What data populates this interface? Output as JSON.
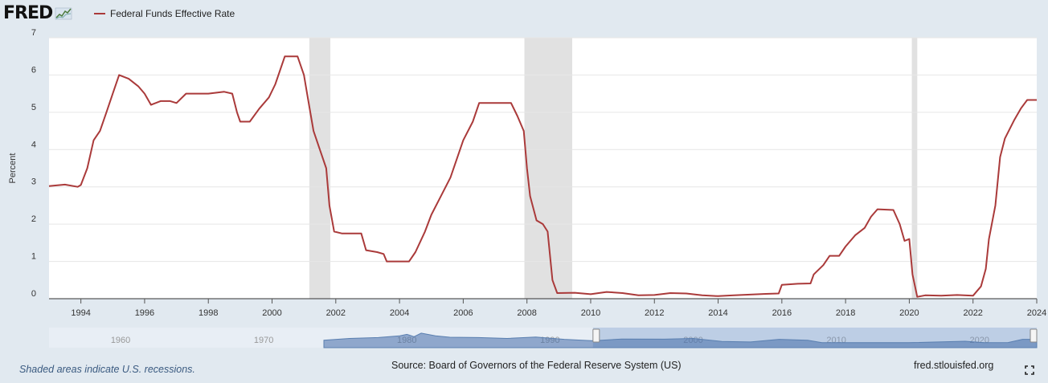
{
  "header": {
    "logo_text": "FRED",
    "logo_icon": "chart-line-icon",
    "series_name": "Federal Funds Effective Rate",
    "series_color": "#aa3a3a"
  },
  "footer": {
    "recession_note": "Shaded areas indicate U.S. recessions.",
    "source": "Source: Board of Governors of the Federal Reserve System (US)",
    "site": "fred.stlouisfed.org",
    "fullscreen_icon": "fullscreen-icon"
  },
  "chart_data": {
    "type": "line",
    "ylabel": "Percent",
    "xlim": [
      1993.0,
      2024.0
    ],
    "ylim": [
      0,
      7
    ],
    "yticks": [
      "0",
      "1",
      "2",
      "3",
      "4",
      "5",
      "6",
      "7"
    ],
    "xticks": [
      "1994",
      "1996",
      "1998",
      "2000",
      "2002",
      "2004",
      "2006",
      "2008",
      "2010",
      "2012",
      "2014",
      "2016",
      "2018",
      "2020",
      "2022",
      "2024"
    ],
    "grid": true,
    "recessions": [
      [
        2001.17,
        2001.83
      ],
      [
        2007.92,
        2009.42
      ],
      [
        2020.08,
        2020.25
      ]
    ],
    "series": [
      {
        "name": "Federal Funds Effective Rate",
        "color": "#aa3a3a",
        "points": [
          [
            1993.0,
            3.02
          ],
          [
            1993.5,
            3.06
          ],
          [
            1993.9,
            3.0
          ],
          [
            1994.0,
            3.05
          ],
          [
            1994.2,
            3.5
          ],
          [
            1994.4,
            4.25
          ],
          [
            1994.6,
            4.5
          ],
          [
            1994.8,
            5.0
          ],
          [
            1995.0,
            5.5
          ],
          [
            1995.2,
            6.0
          ],
          [
            1995.5,
            5.9
          ],
          [
            1995.8,
            5.7
          ],
          [
            1996.0,
            5.5
          ],
          [
            1996.2,
            5.2
          ],
          [
            1996.5,
            5.3
          ],
          [
            1996.8,
            5.3
          ],
          [
            1997.0,
            5.25
          ],
          [
            1997.3,
            5.5
          ],
          [
            1997.6,
            5.5
          ],
          [
            1998.0,
            5.5
          ],
          [
            1998.5,
            5.55
          ],
          [
            1998.75,
            5.5
          ],
          [
            1998.9,
            5.0
          ],
          [
            1999.0,
            4.75
          ],
          [
            1999.3,
            4.75
          ],
          [
            1999.6,
            5.1
          ],
          [
            1999.9,
            5.4
          ],
          [
            2000.1,
            5.75
          ],
          [
            2000.4,
            6.5
          ],
          [
            2000.8,
            6.5
          ],
          [
            2001.0,
            6.0
          ],
          [
            2001.1,
            5.5
          ],
          [
            2001.3,
            4.5
          ],
          [
            2001.5,
            4.0
          ],
          [
            2001.7,
            3.5
          ],
          [
            2001.8,
            2.5
          ],
          [
            2001.95,
            1.8
          ],
          [
            2002.2,
            1.75
          ],
          [
            2002.5,
            1.75
          ],
          [
            2002.8,
            1.75
          ],
          [
            2002.95,
            1.3
          ],
          [
            2003.3,
            1.25
          ],
          [
            2003.5,
            1.2
          ],
          [
            2003.6,
            1.0
          ],
          [
            2003.9,
            1.0
          ],
          [
            2004.3,
            1.0
          ],
          [
            2004.5,
            1.25
          ],
          [
            2004.8,
            1.8
          ],
          [
            2005.0,
            2.25
          ],
          [
            2005.3,
            2.75
          ],
          [
            2005.6,
            3.25
          ],
          [
            2006.0,
            4.25
          ],
          [
            2006.3,
            4.75
          ],
          [
            2006.5,
            5.25
          ],
          [
            2006.8,
            5.25
          ],
          [
            2007.2,
            5.25
          ],
          [
            2007.5,
            5.25
          ],
          [
            2007.7,
            4.9
          ],
          [
            2007.9,
            4.5
          ],
          [
            2008.0,
            3.5
          ],
          [
            2008.1,
            2.75
          ],
          [
            2008.3,
            2.1
          ],
          [
            2008.5,
            2.0
          ],
          [
            2008.65,
            1.8
          ],
          [
            2008.8,
            0.5
          ],
          [
            2008.95,
            0.15
          ],
          [
            2009.5,
            0.16
          ],
          [
            2010.0,
            0.12
          ],
          [
            2010.5,
            0.18
          ],
          [
            2011.0,
            0.15
          ],
          [
            2011.5,
            0.09
          ],
          [
            2012.0,
            0.1
          ],
          [
            2012.5,
            0.15
          ],
          [
            2013.0,
            0.14
          ],
          [
            2013.5,
            0.09
          ],
          [
            2014.0,
            0.07
          ],
          [
            2014.5,
            0.09
          ],
          [
            2015.0,
            0.11
          ],
          [
            2015.5,
            0.13
          ],
          [
            2015.9,
            0.14
          ],
          [
            2016.0,
            0.37
          ],
          [
            2016.5,
            0.4
          ],
          [
            2016.9,
            0.41
          ],
          [
            2017.0,
            0.65
          ],
          [
            2017.3,
            0.9
          ],
          [
            2017.5,
            1.15
          ],
          [
            2017.8,
            1.15
          ],
          [
            2018.0,
            1.4
          ],
          [
            2018.3,
            1.7
          ],
          [
            2018.6,
            1.9
          ],
          [
            2018.8,
            2.2
          ],
          [
            2019.0,
            2.4
          ],
          [
            2019.5,
            2.38
          ],
          [
            2019.7,
            2.0
          ],
          [
            2019.85,
            1.55
          ],
          [
            2020.0,
            1.6
          ],
          [
            2020.1,
            0.65
          ],
          [
            2020.25,
            0.05
          ],
          [
            2020.5,
            0.09
          ],
          [
            2021.0,
            0.08
          ],
          [
            2021.5,
            0.1
          ],
          [
            2022.0,
            0.08
          ],
          [
            2022.25,
            0.33
          ],
          [
            2022.4,
            0.8
          ],
          [
            2022.5,
            1.6
          ],
          [
            2022.7,
            2.5
          ],
          [
            2022.85,
            3.8
          ],
          [
            2023.0,
            4.3
          ],
          [
            2023.3,
            4.8
          ],
          [
            2023.5,
            5.1
          ],
          [
            2023.7,
            5.33
          ],
          [
            2024.0,
            5.33
          ]
        ]
      }
    ]
  },
  "navigator": {
    "xticks": [
      "1960",
      "1970",
      "1980",
      "1990",
      "2000",
      "2010",
      "2020"
    ],
    "range": [
      1955,
      2024
    ],
    "selected": [
      1993.0,
      2024.0
    ]
  }
}
